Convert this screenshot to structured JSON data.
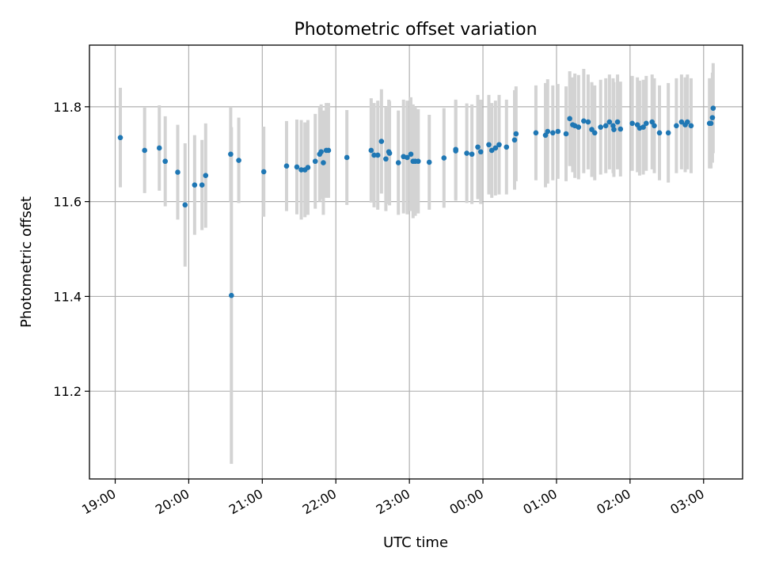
{
  "chart_data": {
    "type": "scatter",
    "title": "Photometric offset variation",
    "xlabel": "UTC time",
    "ylabel": "Photometric offset",
    "x_unit": "hours",
    "x_ticks": [
      {
        "label": "19:00",
        "value": 19
      },
      {
        "label": "20:00",
        "value": 20
      },
      {
        "label": "21:00",
        "value": 21
      },
      {
        "label": "22:00",
        "value": 22
      },
      {
        "label": "23:00",
        "value": 23
      },
      {
        "label": "00:00",
        "value": 24
      },
      {
        "label": "01:00",
        "value": 25
      },
      {
        "label": "02:00",
        "value": 26
      },
      {
        "label": "03:00",
        "value": 27
      }
    ],
    "y_ticks": [
      11.2,
      11.4,
      11.6,
      11.8
    ],
    "xlim": [
      18.65,
      27.53
    ],
    "ylim": [
      11.015,
      11.93
    ],
    "grid": true,
    "colors": {
      "points": "#1f77b4",
      "errorbars": "#d3d3d3",
      "grid": "#b0b0b0"
    },
    "series": [
      {
        "values": [
          [
            19.07,
            11.735,
            0.105
          ],
          [
            19.4,
            11.708,
            0.09
          ],
          [
            19.6,
            11.713,
            0.09
          ],
          [
            19.68,
            11.685,
            0.095
          ],
          [
            19.85,
            11.662,
            0.1
          ],
          [
            19.95,
            11.593,
            0.13
          ],
          [
            20.08,
            11.635,
            0.105
          ],
          [
            20.18,
            11.635,
            0.095
          ],
          [
            20.23,
            11.655,
            0.11
          ],
          [
            20.57,
            11.7,
            0.1
          ],
          [
            20.58,
            11.402,
            0.355
          ],
          [
            20.68,
            11.687,
            0.09
          ],
          [
            21.02,
            11.663,
            0.095
          ],
          [
            21.33,
            11.675,
            0.095
          ],
          [
            21.47,
            11.673,
            0.1
          ],
          [
            21.53,
            11.667,
            0.105
          ],
          [
            21.58,
            11.667,
            0.1
          ],
          [
            21.62,
            11.672,
            0.1
          ],
          [
            21.72,
            11.685,
            0.1
          ],
          [
            21.78,
            11.7,
            0.1
          ],
          [
            21.8,
            11.705,
            0.1
          ],
          [
            21.83,
            11.682,
            0.11
          ],
          [
            21.87,
            11.708,
            0.1
          ],
          [
            21.9,
            11.708,
            0.1
          ],
          [
            22.15,
            11.693,
            0.1
          ],
          [
            22.48,
            11.708,
            0.11
          ],
          [
            22.52,
            11.698,
            0.11
          ],
          [
            22.57,
            11.698,
            0.115
          ],
          [
            22.62,
            11.727,
            0.11
          ],
          [
            22.68,
            11.69,
            0.11
          ],
          [
            22.72,
            11.705,
            0.11
          ],
          [
            22.73,
            11.702,
            0.11
          ],
          [
            22.85,
            11.682,
            0.11
          ],
          [
            22.92,
            11.695,
            0.12
          ],
          [
            22.97,
            11.693,
            0.12
          ],
          [
            23.02,
            11.7,
            0.12
          ],
          [
            23.05,
            11.685,
            0.12
          ],
          [
            23.08,
            11.685,
            0.115
          ],
          [
            23.12,
            11.685,
            0.11
          ],
          [
            23.27,
            11.683,
            0.1
          ],
          [
            23.47,
            11.692,
            0.105
          ],
          [
            23.63,
            11.71,
            0.105
          ],
          [
            23.63,
            11.707,
            0.105
          ],
          [
            23.78,
            11.702,
            0.105
          ],
          [
            23.85,
            11.7,
            0.105
          ],
          [
            23.93,
            11.715,
            0.11
          ],
          [
            23.97,
            11.705,
            0.11
          ],
          [
            24.08,
            11.72,
            0.105
          ],
          [
            24.12,
            11.708,
            0.1
          ],
          [
            24.17,
            11.713,
            0.1
          ],
          [
            24.22,
            11.72,
            0.105
          ],
          [
            24.32,
            11.715,
            0.1
          ],
          [
            24.43,
            11.73,
            0.105
          ],
          [
            24.45,
            11.743,
            0.1
          ],
          [
            24.72,
            11.745,
            0.1
          ],
          [
            24.85,
            11.74,
            0.11
          ],
          [
            24.88,
            11.748,
            0.11
          ],
          [
            24.95,
            11.745,
            0.1
          ],
          [
            25.02,
            11.748,
            0.1
          ],
          [
            25.13,
            11.743,
            0.1
          ],
          [
            25.18,
            11.775,
            0.1
          ],
          [
            25.22,
            11.762,
            0.1
          ],
          [
            25.25,
            11.76,
            0.11
          ],
          [
            25.3,
            11.757,
            0.11
          ],
          [
            25.37,
            11.77,
            0.11
          ],
          [
            25.43,
            11.768,
            0.1
          ],
          [
            25.48,
            11.752,
            0.1
          ],
          [
            25.52,
            11.745,
            0.1
          ],
          [
            25.6,
            11.757,
            0.1
          ],
          [
            25.67,
            11.76,
            0.1
          ],
          [
            25.72,
            11.768,
            0.1
          ],
          [
            25.77,
            11.76,
            0.1
          ],
          [
            25.78,
            11.752,
            0.1
          ],
          [
            25.83,
            11.768,
            0.1
          ],
          [
            25.87,
            11.753,
            0.1
          ],
          [
            26.03,
            11.765,
            0.1
          ],
          [
            26.1,
            11.762,
            0.1
          ],
          [
            26.13,
            11.755,
            0.1
          ],
          [
            26.18,
            11.757,
            0.1
          ],
          [
            26.22,
            11.765,
            0.1
          ],
          [
            26.3,
            11.768,
            0.1
          ],
          [
            26.33,
            11.76,
            0.1
          ],
          [
            26.4,
            11.745,
            0.1
          ],
          [
            26.52,
            11.745,
            0.105
          ],
          [
            26.63,
            11.76,
            0.1
          ],
          [
            26.7,
            11.768,
            0.1
          ],
          [
            26.75,
            11.762,
            0.1
          ],
          [
            26.78,
            11.768,
            0.1
          ],
          [
            26.83,
            11.76,
            0.1
          ],
          [
            27.08,
            11.765,
            0.095
          ],
          [
            27.1,
            11.765,
            0.095
          ],
          [
            27.12,
            11.777,
            0.095
          ],
          [
            27.13,
            11.797,
            0.095
          ]
        ]
      }
    ]
  }
}
